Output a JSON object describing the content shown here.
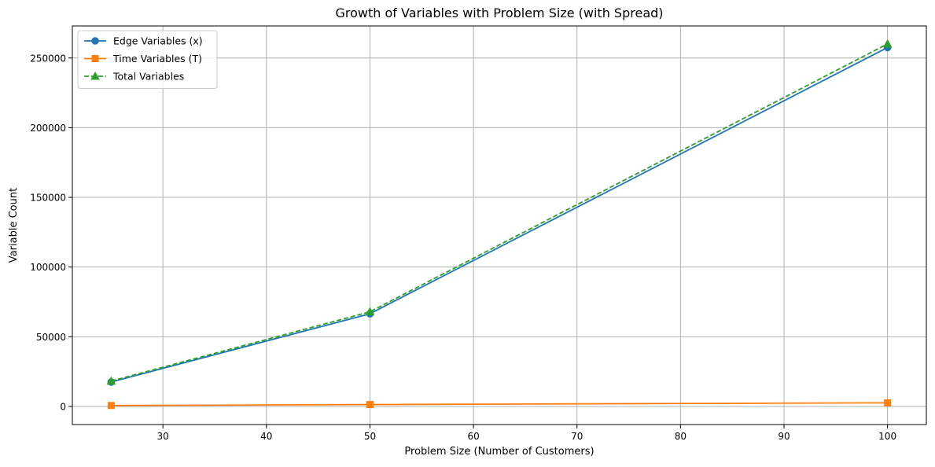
{
  "chart_data": {
    "type": "line",
    "title": "Growth of Variables with Problem Size (with Spread)",
    "xlabel": "Problem Size (Number of Customers)",
    "ylabel": "Variable Count",
    "x": [
      25,
      50,
      100
    ],
    "xlim": [
      21.25,
      103.75
    ],
    "ylim": [
      -13000,
      273000
    ],
    "xticks": [
      30,
      40,
      50,
      60,
      70,
      80,
      90,
      100
    ],
    "yticks": [
      0,
      50000,
      100000,
      150000,
      200000,
      250000
    ],
    "xtick_labels": [
      "30",
      "40",
      "50",
      "60",
      "70",
      "80",
      "90",
      "100"
    ],
    "ytick_labels": [
      "0",
      "50000",
      "100000",
      "150000",
      "200000",
      "250000"
    ],
    "grid": true,
    "legend_position": "top-left",
    "series": [
      {
        "name": "Edge Variables (x)",
        "values": [
          17500,
          66500,
          257500
        ],
        "color": "#1f77b4",
        "marker": "circle",
        "linestyle": "solid"
      },
      {
        "name": "Time Variables (T)",
        "values": [
          675,
          1350,
          2600
        ],
        "color": "#ff7f0e",
        "marker": "square",
        "linestyle": "solid"
      },
      {
        "name": "Total Variables",
        "values": [
          18200,
          67900,
          260100
        ],
        "color": "#2ca02c",
        "marker": "triangle",
        "linestyle": "dashed"
      }
    ]
  }
}
